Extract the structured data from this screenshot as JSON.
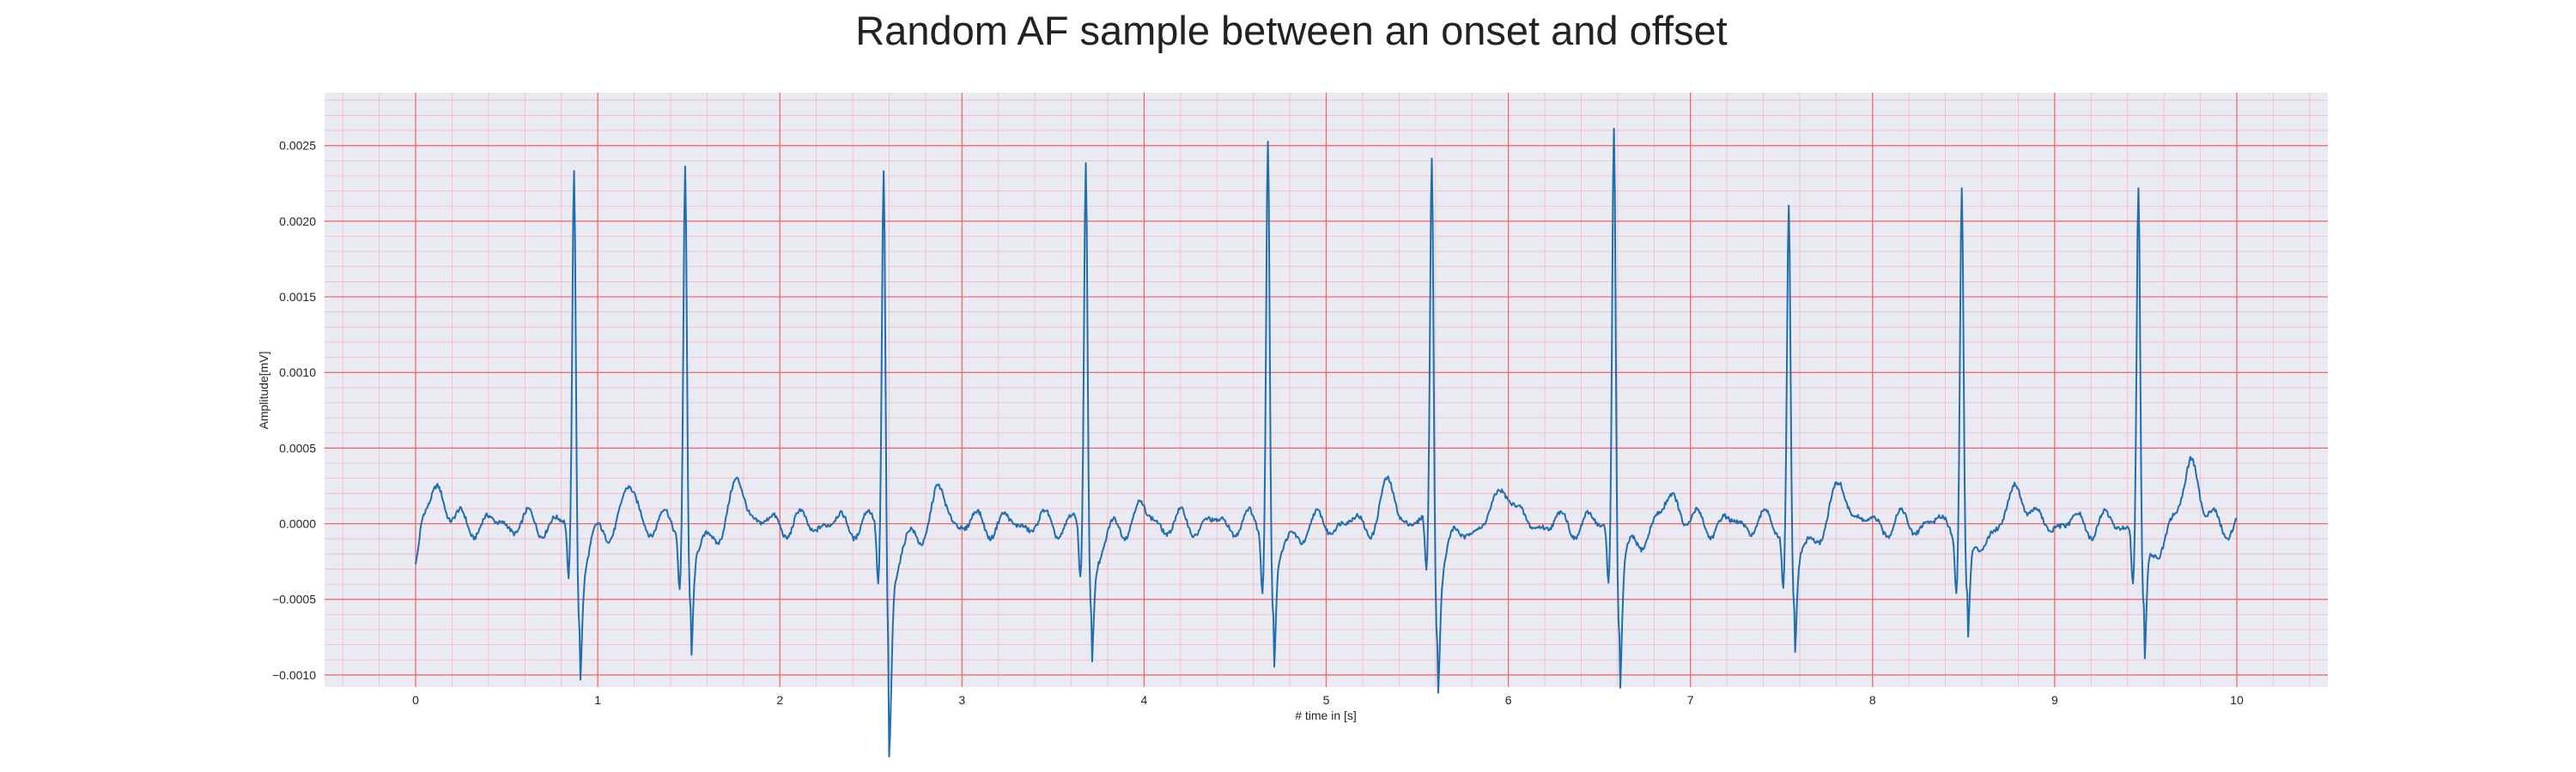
{
  "chart_data": {
    "type": "line",
    "title": "Random AF sample between an onset and offset",
    "xlabel": "# time in [s]",
    "ylabel": "Amplitude[mV]",
    "xlim": [
      -0.5,
      10.5
    ],
    "ylim": [
      -0.00108,
      0.00285
    ],
    "x_ticks": [
      0,
      1,
      2,
      3,
      4,
      5,
      6,
      7,
      8,
      9,
      10
    ],
    "x_tick_labels": [
      "0",
      "1",
      "2",
      "3",
      "4",
      "5",
      "6",
      "7",
      "8",
      "9",
      "10"
    ],
    "y_ticks": [
      -0.001,
      -0.0005,
      0.0,
      0.0005,
      0.001,
      0.0015,
      0.002,
      0.0025
    ],
    "y_tick_labels": [
      "−0.0010",
      "−0.0005",
      "0.0000",
      "0.0005",
      "0.0010",
      "0.0015",
      "0.0020",
      "0.0025"
    ],
    "x_minor_step": 0.2,
    "y_minor_step": 0.0001,
    "grid": true,
    "sampling_rate_hz": 200,
    "series": [
      {
        "name": "",
        "color": "#1f6fae",
        "r_peaks": [
          {
            "t": 0.87,
            "amp": 0.00235,
            "s_depth": -0.00065
          },
          {
            "t": 1.48,
            "amp": 0.0024,
            "s_depth": -0.0006
          },
          {
            "t": 2.57,
            "amp": 0.0024,
            "s_depth": -0.00095
          },
          {
            "t": 3.68,
            "amp": 0.0024,
            "s_depth": -0.0006
          },
          {
            "t": 4.68,
            "amp": 0.0026,
            "s_depth": -0.00065
          },
          {
            "t": 5.58,
            "amp": 0.00245,
            "s_depth": -0.0007
          },
          {
            "t": 6.58,
            "amp": 0.0027,
            "s_depth": -0.00072
          },
          {
            "t": 7.54,
            "amp": 0.0021,
            "s_depth": -0.0006
          },
          {
            "t": 8.49,
            "amp": 0.00225,
            "s_depth": -0.00057
          },
          {
            "t": 9.46,
            "amp": 0.00225,
            "s_depth": -0.00065
          }
        ],
        "t_waves": [
          {
            "t": 0.12,
            "amp": 0.00026
          },
          {
            "t": 1.17,
            "amp": 0.00022
          },
          {
            "t": 1.78,
            "amp": 0.00027
          },
          {
            "t": 2.88,
            "amp": 0.00019
          },
          {
            "t": 3.97,
            "amp": 0.0001
          },
          {
            "t": 5.35,
            "amp": 0.00024
          },
          {
            "t": 5.98,
            "amp": 0.00028
          },
          {
            "t": 6.9,
            "amp": 0.0002
          },
          {
            "t": 7.83,
            "amp": 0.00027
          },
          {
            "t": 8.8,
            "amp": 0.00027
          },
          {
            "t": 9.75,
            "amp": 0.00045
          }
        ]
      }
    ]
  }
}
